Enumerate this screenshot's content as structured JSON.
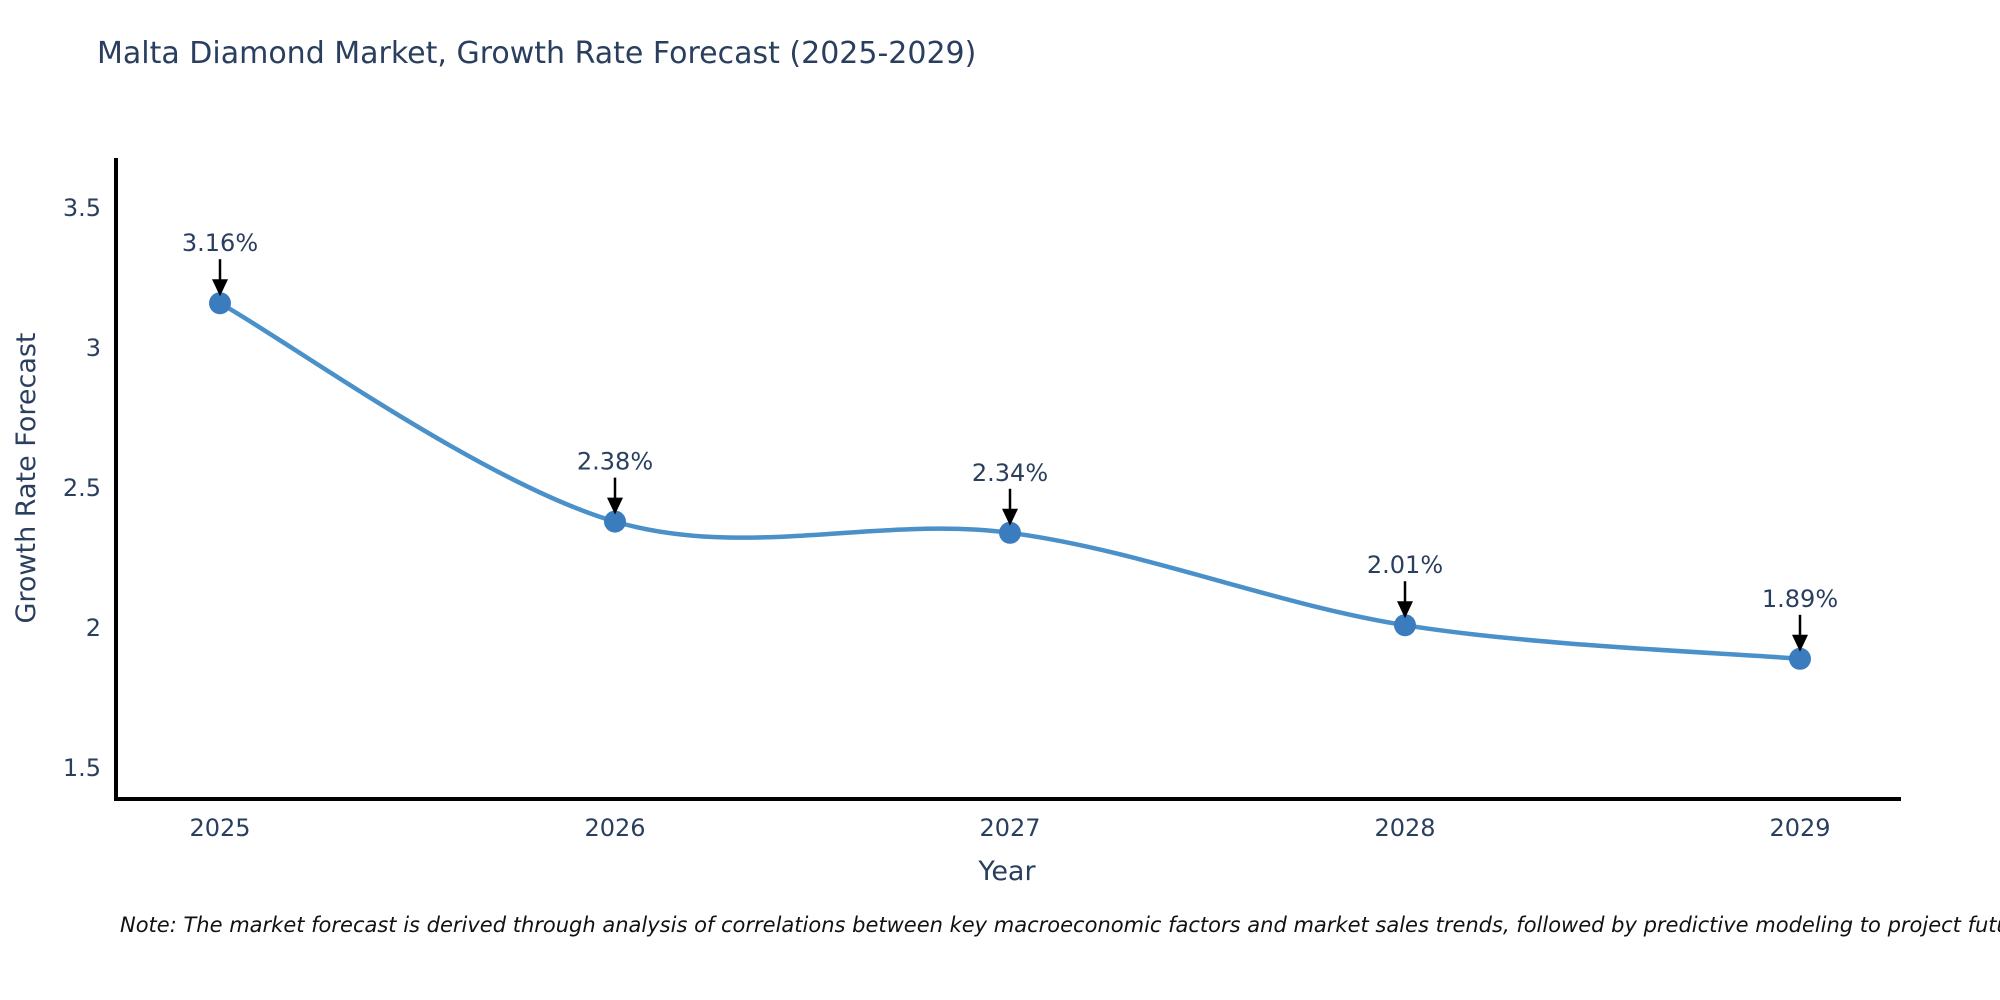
{
  "note": {
    "text": "Note: The market forecast is derived through analysis of correlations between key macroeconomic factors and market sales trends, followed by predictive modeling to project future sales"
  },
  "chart_data": {
    "type": "line",
    "title": "Malta Diamond Market, Growth Rate Forecast (2025-2029)",
    "xlabel": "Year",
    "ylabel": "Growth Rate Forecast",
    "categories": [
      "2025",
      "2026",
      "2027",
      "2028",
      "2029"
    ],
    "values": [
      3.16,
      2.38,
      2.34,
      2.01,
      1.89
    ],
    "point_labels": [
      "3.16%",
      "2.38%",
      "2.34%",
      "2.01%",
      "1.89%"
    ],
    "yticks": [
      3.5,
      3,
      2.5,
      2,
      1.5
    ],
    "ytick_labels": [
      "3.5",
      "3",
      "2.5",
      "2",
      "1.5"
    ],
    "ylim": [
      1.39,
      3.67
    ],
    "grid": false,
    "legend": "none",
    "curve": "spline",
    "line_color": "#4a90c9",
    "marker_color": "#3a7cbd",
    "axis_color": "#000000",
    "tick_color": "#2a3f5f",
    "label_color": "#2a3f5f",
    "annotation_text_color": "#2a3f5f",
    "arrow_color": "#000000",
    "background_color": "#ffffff"
  }
}
